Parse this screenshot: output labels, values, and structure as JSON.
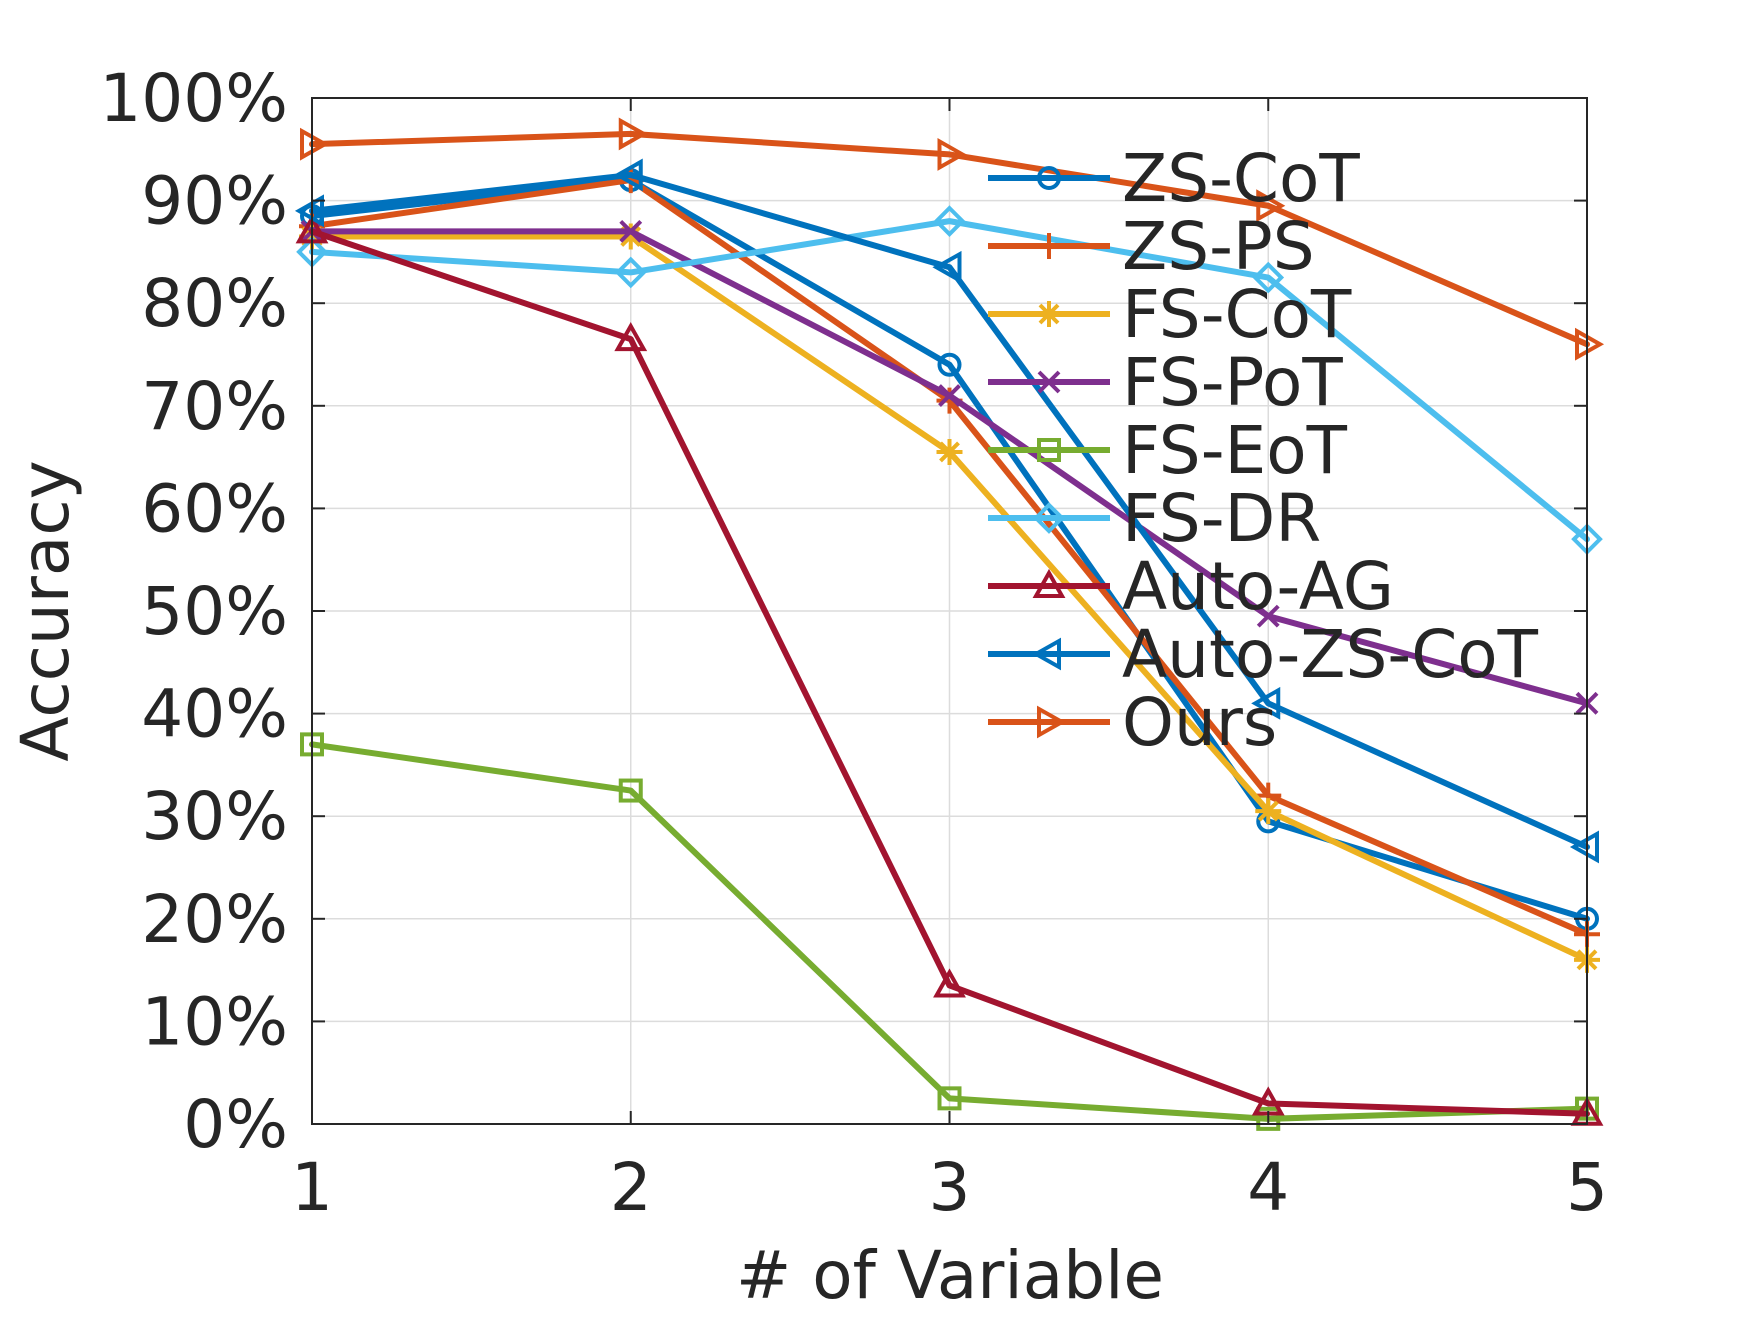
{
  "chart_data": {
    "type": "line",
    "title": "",
    "xlabel": "# of Variable",
    "ylabel": "Accuracy",
    "x": [
      1,
      2,
      3,
      4,
      5
    ],
    "x_tick_labels": [
      "1",
      "2",
      "3",
      "4",
      "5"
    ],
    "xlim": [
      1,
      5
    ],
    "ylim": [
      0,
      100
    ],
    "y_ticks": [
      0,
      10,
      20,
      30,
      40,
      50,
      60,
      70,
      80,
      90,
      100
    ],
    "y_tick_labels": [
      "0%",
      "10%",
      "20%",
      "30%",
      "40%",
      "50%",
      "60%",
      "70%",
      "80%",
      "90%",
      "100%"
    ],
    "grid": true,
    "legend_position": "top-right",
    "series": [
      {
        "name": "ZS-CoT",
        "color": "#0072BD",
        "marker": "circle",
        "values": [
          88.5,
          92.0,
          74.0,
          29.5,
          20.0
        ]
      },
      {
        "name": "ZS-PS",
        "color": "#D95319",
        "marker": "plus",
        "values": [
          87.5,
          92.0,
          70.5,
          32.0,
          18.5
        ]
      },
      {
        "name": "FS-CoT",
        "color": "#EDB120",
        "marker": "asterisk",
        "values": [
          86.5,
          86.5,
          65.5,
          30.5,
          16.0
        ]
      },
      {
        "name": "FS-PoT",
        "color": "#7E2F8E",
        "marker": "x",
        "values": [
          87.0,
          87.0,
          71.0,
          49.5,
          41.0
        ]
      },
      {
        "name": "FS-EoT",
        "color": "#77AC30",
        "marker": "square",
        "values": [
          37.0,
          32.5,
          2.5,
          0.5,
          1.5
        ]
      },
      {
        "name": "FS-DR",
        "color": "#4DBEEE",
        "marker": "diamond",
        "values": [
          85.0,
          83.0,
          88.0,
          82.5,
          57.0
        ]
      },
      {
        "name": "Auto-AG",
        "color": "#A2142F",
        "marker": "triangle-up",
        "values": [
          87.0,
          76.5,
          13.5,
          2.0,
          1.0
        ]
      },
      {
        "name": "Auto-ZS-CoT",
        "color": "#0072BD",
        "marker": "triangle-left",
        "values": [
          89.0,
          92.5,
          83.5,
          41.0,
          27.0
        ]
      },
      {
        "name": "Ours",
        "color": "#D95319",
        "marker": "triangle-right",
        "values": [
          95.5,
          96.5,
          94.5,
          89.5,
          76.0
        ]
      }
    ]
  }
}
